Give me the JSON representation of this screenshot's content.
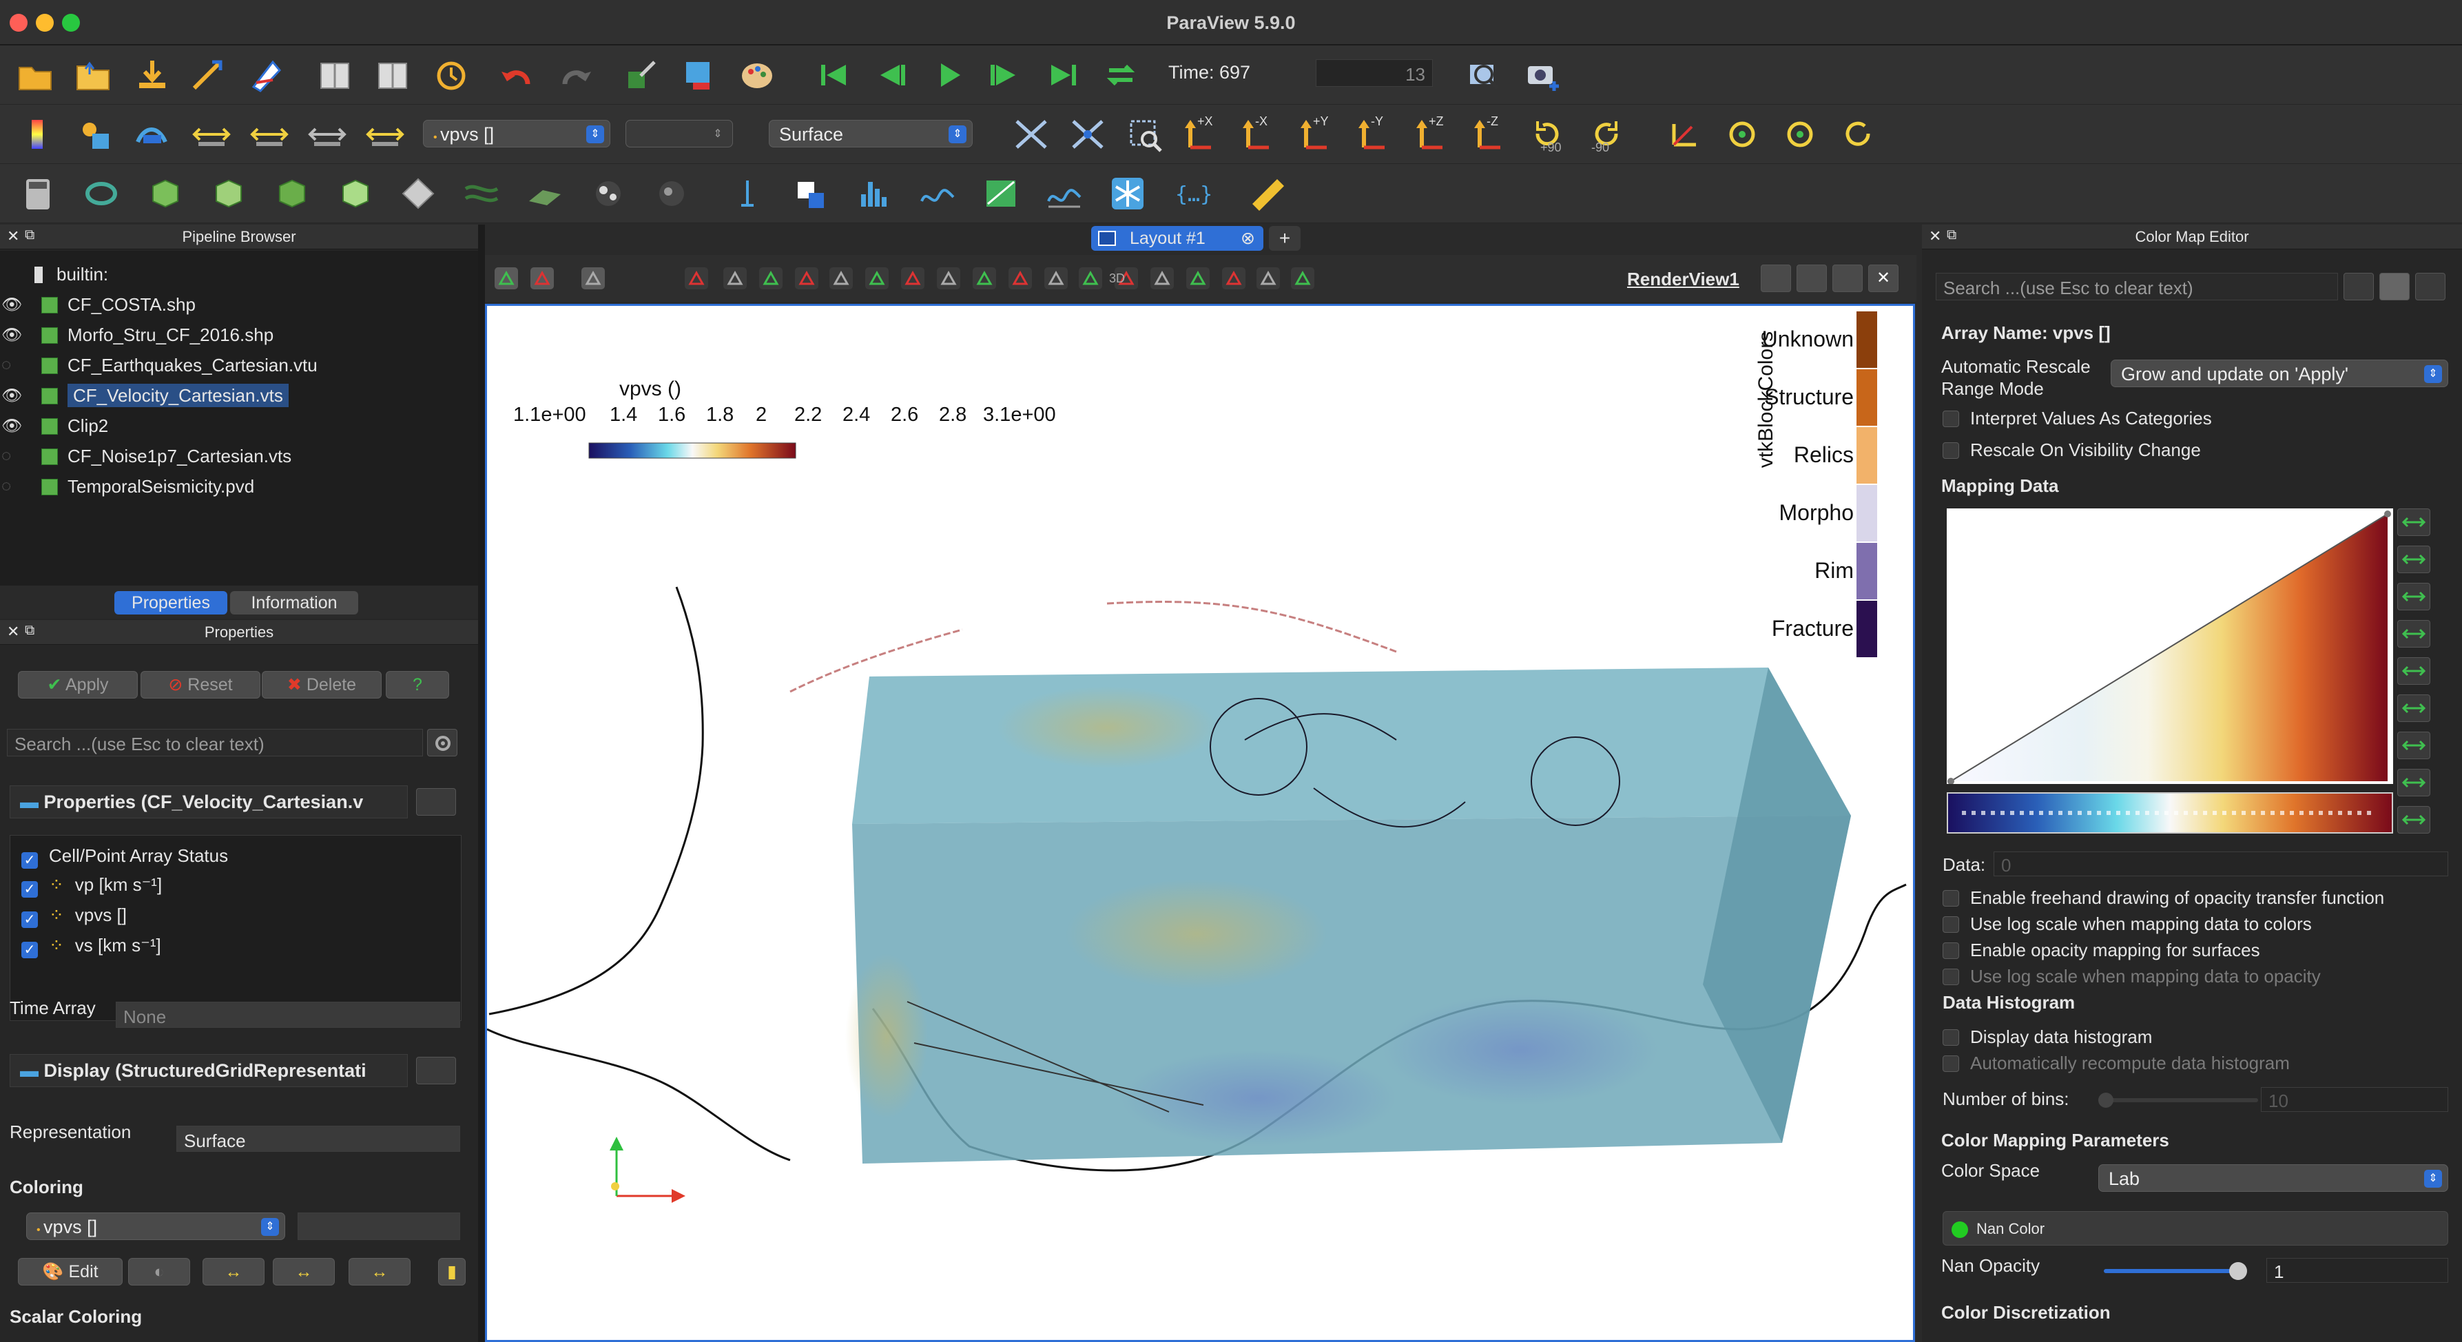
{
  "window": {
    "title": "ParaView 5.9.0"
  },
  "toolbar": {
    "time_label": "Time: 697",
    "time_index": "13",
    "array_name": "vpvs  []",
    "representation": "Surface",
    "rot_plus": "+90",
    "rot_minus": "-90",
    "axes": [
      "+X",
      "-X",
      "+Y",
      "-Y",
      "+Z",
      "-Z"
    ]
  },
  "tabs": {
    "layout": "Layout #1",
    "add": "+",
    "renderview": "RenderView1",
    "mode_3d": "3D"
  },
  "pipeline": {
    "title": "Pipeline Browser",
    "root": "builtin:",
    "items": [
      {
        "label": "CF_COSTA.shp",
        "visible": true,
        "selected": false
      },
      {
        "label": "Morfo_Stru_CF_2016.shp",
        "visible": true,
        "selected": false
      },
      {
        "label": "CF_Earthquakes_Cartesian.vtu",
        "visible": false,
        "selected": false
      },
      {
        "label": "CF_Velocity_Cartesian.vts",
        "visible": true,
        "selected": true
      },
      {
        "label": "Clip2",
        "visible": true,
        "selected": false
      },
      {
        "label": "CF_Noise1p7_Cartesian.vts",
        "visible": false,
        "selected": false
      },
      {
        "label": "TemporalSeismicity.pvd",
        "visible": false,
        "selected": false
      }
    ]
  },
  "properties": {
    "tab_properties": "Properties",
    "tab_information": "Information",
    "title": "Properties",
    "apply": "Apply",
    "reset": "Reset",
    "delete": "Delete",
    "help": "?",
    "search_placeholder": "Search ...(use Esc to clear text)",
    "section_props": "Properties (CF_Velocity_Cartesian.v",
    "array_status": "Cell/Point Array Status",
    "arrays": [
      "vp  [km s⁻¹]",
      "vpvs  []",
      "vs  [km s⁻¹]"
    ],
    "time_array_label": "Time Array",
    "time_array_value": "None",
    "section_display": "Display (StructuredGridRepresentati",
    "representation_label": "Representation",
    "representation_value": "Surface",
    "coloring_label": "Coloring",
    "coloring_value": "vpvs  []",
    "edit": "Edit",
    "scalar_coloring": "Scalar Coloring"
  },
  "render": {
    "colorbar": {
      "title": "vpvs  ()",
      "ticks": [
        "1.1e+00",
        "1.4",
        "1.6",
        "1.8",
        "2",
        "2.2",
        "2.4",
        "2.6",
        "2.8",
        "3.1e+00"
      ]
    },
    "block_legend": {
      "title": "vtkBlockColors",
      "entries": [
        {
          "label": "Unknown",
          "color": "#8b3f0c"
        },
        {
          "label": "Structure",
          "color": "#c8661a"
        },
        {
          "label": "Relics",
          "color": "#f2b26a"
        },
        {
          "label": "Morpho",
          "color": "#d9d6ea"
        },
        {
          "label": "Rim",
          "color": "#7f6fae"
        },
        {
          "label": "Fracture",
          "color": "#2b1050"
        }
      ]
    }
  },
  "cme": {
    "title": "Color Map Editor",
    "search_placeholder": "Search ...(use Esc to clear text)",
    "array_name": "Array Name: vpvs  []",
    "auto_rescale_label": "Automatic Rescale Range Mode",
    "auto_rescale_value": "Grow and update on 'Apply'",
    "interpret_categories": "Interpret Values As Categories",
    "rescale_visibility": "Rescale On Visibility Change",
    "mapping_data": "Mapping Data",
    "data_label": "Data:",
    "data_value": "0",
    "opt1": "Enable freehand drawing of opacity transfer function",
    "opt2": "Use log scale when mapping data to colors",
    "opt3": "Enable opacity mapping for surfaces",
    "opt4": "Use log scale when mapping data to opacity",
    "histogram": "Data Histogram",
    "display_hist": "Display data histogram",
    "auto_hist": "Automatically recompute data histogram",
    "bins_label": "Number of bins:",
    "bins_value": "10",
    "cmp": "Color Mapping Parameters",
    "color_space_label": "Color Space",
    "color_space_value": "Lab",
    "nan_color": "Nan Color",
    "nan_color_value": "#22cc22",
    "nan_opacity_label": "Nan Opacity",
    "nan_opacity_value": "1",
    "discretization": "Color Discretization"
  }
}
